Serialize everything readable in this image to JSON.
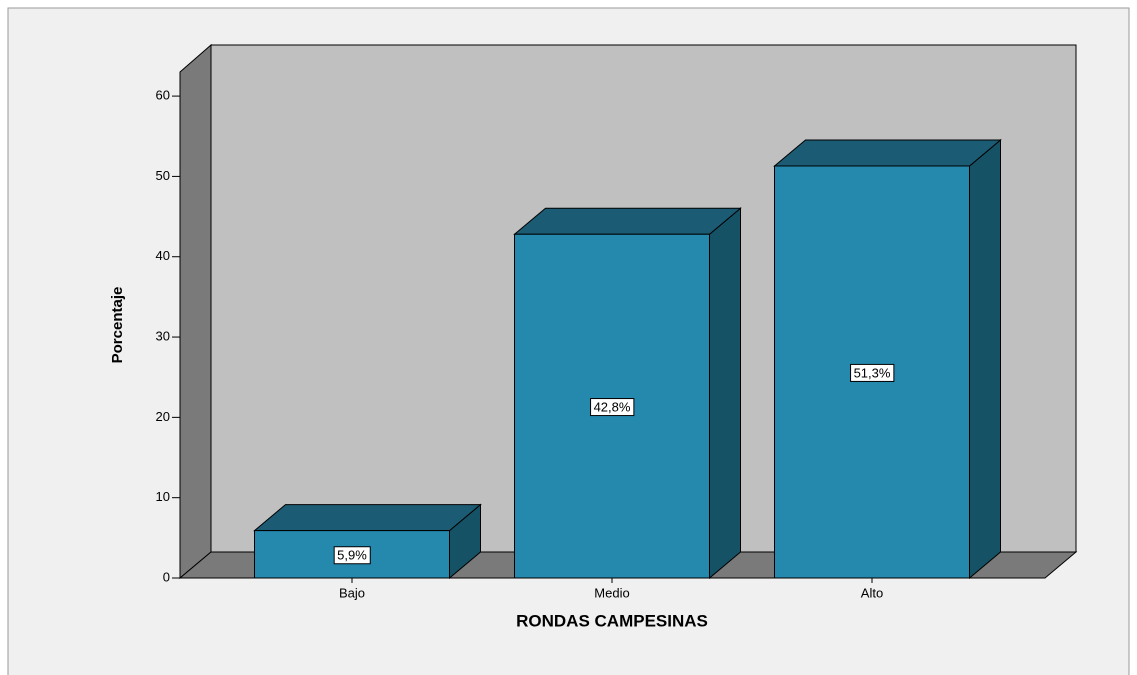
{
  "chart_data": {
    "type": "bar",
    "x_label": "RONDAS CAMPESINAS",
    "y_label": "Porcentaje",
    "categories": [
      "Bajo",
      "Medio",
      "Alto"
    ],
    "values": [
      5.9,
      42.8,
      51.3
    ],
    "value_labels": [
      "5,9%",
      "42,8%",
      "51,3%"
    ],
    "color": "#2589ae",
    "ylim": [
      0,
      63
    ],
    "yticks": [
      0,
      10,
      20,
      30,
      40,
      50,
      60
    ]
  }
}
